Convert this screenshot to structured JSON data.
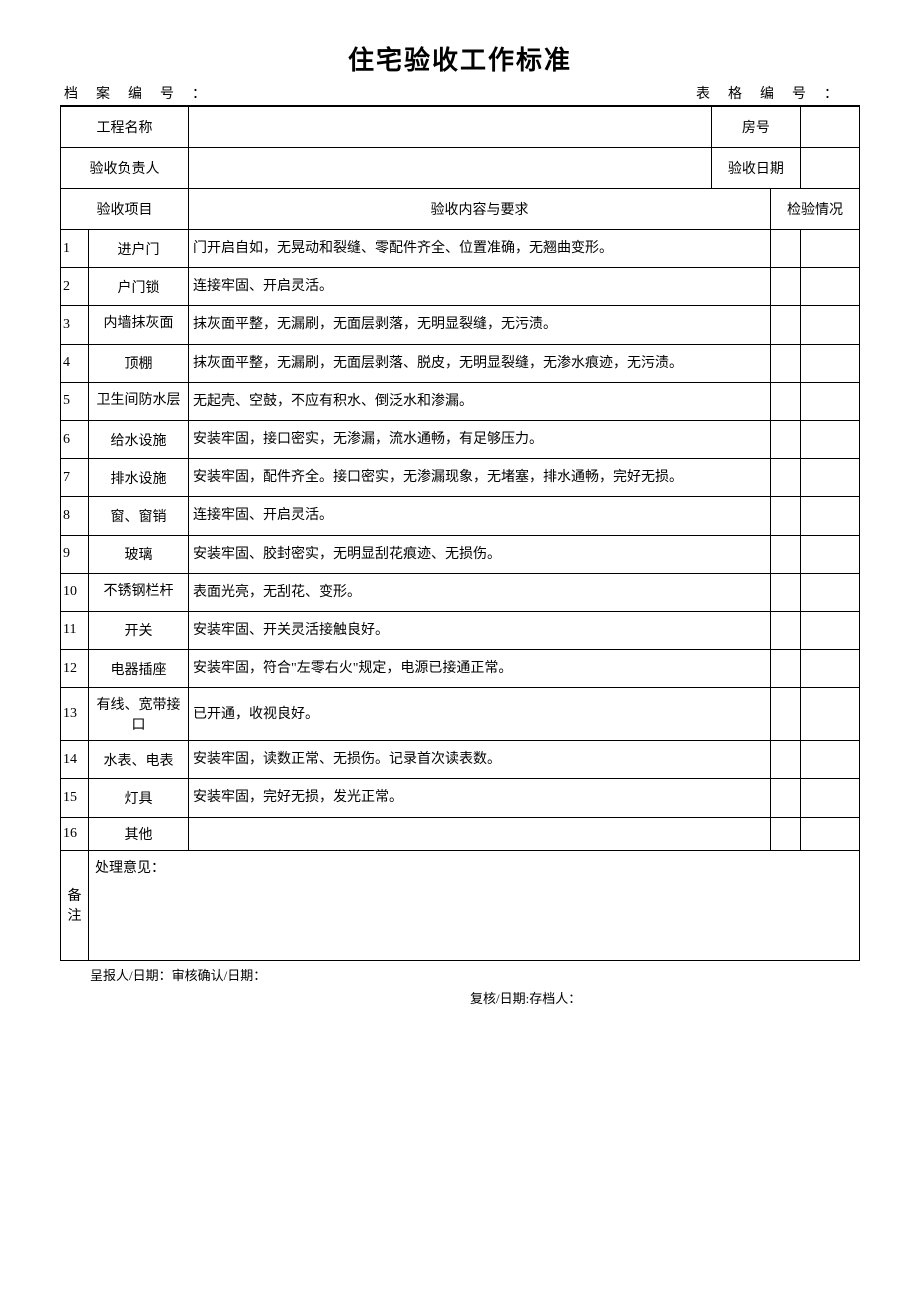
{
  "title": "住宅验收工作标准",
  "file_left": "档案编号：",
  "file_right": "表格编号：",
  "info": {
    "project_name_label": "工程名称",
    "room_label": "房号",
    "inspector_label": "验收负责人",
    "date_label": "验收日期"
  },
  "headers": {
    "item": "验收项目",
    "requirement": "验收内容与要求",
    "inspection": "检验情况"
  },
  "rows": [
    {
      "n": "1",
      "item": "进户门",
      "req": "门开启自如，无晃动和裂缝、零配件齐全、位置准确，无翘曲变形。"
    },
    {
      "n": "2",
      "item": "户门锁",
      "req": "连接牢固、开启灵活。"
    },
    {
      "n": "3",
      "item": "内墙抹灰面",
      "req": "抹灰面平整，无漏刷，无面层剥落，无明显裂缝，无污渍。"
    },
    {
      "n": "4",
      "item": "顶棚",
      "req": "抹灰面平整，无漏刷，无面层剥落、脱皮，无明显裂缝，无渗水痕迹，无污渍。"
    },
    {
      "n": "5",
      "item": "卫生间防水层",
      "req": "无起壳、空鼓，不应有积水、倒泛水和渗漏。"
    },
    {
      "n": "6",
      "item": "给水设施",
      "req": "安装牢固，接口密实，无渗漏，流水通畅，有足够压力。"
    },
    {
      "n": "7",
      "item": "排水设施",
      "req": "安装牢固，配件齐全。接口密实，无渗漏现象，无堵塞，排水通畅，完好无损。"
    },
    {
      "n": "8",
      "item": "窗、窗销",
      "req": "连接牢固、开启灵活。"
    },
    {
      "n": "9",
      "item": "玻璃",
      "req": "安装牢固、胶封密实，无明显刮花痕迹、无损伤。"
    },
    {
      "n": "10",
      "item": "不锈钢栏杆",
      "req": "表面光亮，无刮花、变形。"
    },
    {
      "n": "11",
      "item": "开关",
      "req": "安装牢固、开关灵活接触良好。"
    },
    {
      "n": "12",
      "item": "电器插座",
      "req": "安装牢固，符合\"左零右火\"规定，电源已接通正常。"
    },
    {
      "n": "13",
      "item": "有线、宽带接口",
      "req": "已开通，收视良好。"
    },
    {
      "n": "14",
      "item": "水表、电表",
      "req": "安装牢固，读数正常、无损伤。记录首次读表数。"
    },
    {
      "n": "15",
      "item": "灯具",
      "req": "安装牢固，完好无损，发光正常。"
    },
    {
      "n": "16",
      "item": "其他",
      "req": ""
    }
  ],
  "remarks_label": "备注",
  "remarks_title": "处理意见：",
  "footer1": "呈报人/日期：审核确认/日期：",
  "footer2": "复核/日期:存档人："
}
